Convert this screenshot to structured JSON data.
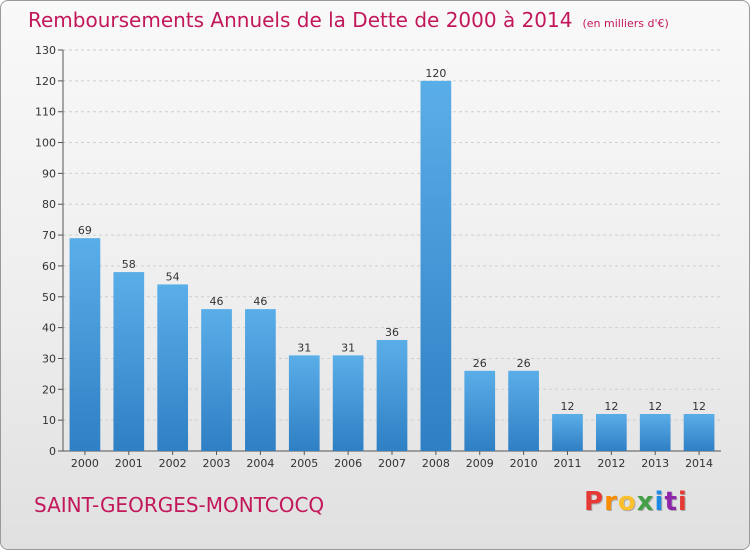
{
  "header": {
    "title": "Remboursements Annuels de la Dette de 2000 à 2014",
    "subtitle": "(en milliers d'€)"
  },
  "footer": {
    "commune": "SAINT-GEORGES-MONTCOCQ",
    "logo": {
      "text": "Proxiti",
      "colors": [
        "#e53935",
        "#fb8c00",
        "#fbc02d",
        "#43a047",
        "#1e88e5",
        "#8e24aa",
        "#e53935"
      ]
    }
  },
  "colors": {
    "bar_light": "#5aaee8",
    "bar_dark": "#2f7fc4",
    "title": "#c2185b"
  },
  "chart_data": {
    "type": "bar",
    "title": "Remboursements Annuels de la Dette de 2000 à 2014",
    "subtitle": "(en milliers d'€)",
    "categories": [
      "2000",
      "2001",
      "2002",
      "2003",
      "2004",
      "2005",
      "2006",
      "2007",
      "2008",
      "2009",
      "2010",
      "2011",
      "2012",
      "2013",
      "2014"
    ],
    "values": [
      69,
      58,
      54,
      46,
      46,
      31,
      31,
      36,
      120,
      26,
      26,
      12,
      12,
      12,
      12
    ],
    "ylim": [
      0,
      130
    ],
    "yticks": [
      0,
      10,
      20,
      30,
      40,
      50,
      60,
      70,
      80,
      90,
      100,
      110,
      120,
      130
    ],
    "grid": true,
    "data_labels": true
  }
}
